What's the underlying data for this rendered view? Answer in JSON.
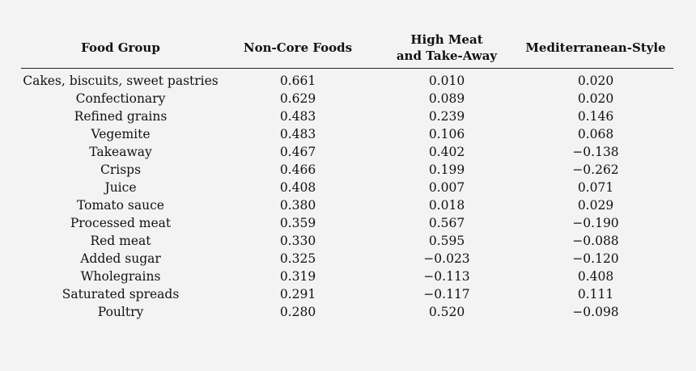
{
  "table": {
    "headers": [
      "Food Group",
      "Non-Core Foods",
      "High Meat\nand Take-Away",
      "Mediterranean-Style"
    ],
    "header_lines": {
      "col0": "Food Group",
      "col1": "Non-Core Foods",
      "col2_line1": "High Meat",
      "col2_line2": "and Take-Away",
      "col3": "Mediterranean-Style"
    },
    "rows": [
      [
        "Cakes, biscuits, sweet pastries",
        "0.661",
        "0.010",
        "0.020"
      ],
      [
        "Confectionary",
        "0.629",
        "0.089",
        "0.020"
      ],
      [
        "Refined grains",
        "0.483",
        "0.239",
        "0.146"
      ],
      [
        "Vegemite",
        "0.483",
        "0.106",
        "0.068"
      ],
      [
        "Takeaway",
        "0.467",
        "0.402",
        "−0.138"
      ],
      [
        "Crisps",
        "0.466",
        "0.199",
        "−0.262"
      ],
      [
        "Juice",
        "0.408",
        "0.007",
        "0.071"
      ],
      [
        "Tomato sauce",
        "0.380",
        "0.018",
        "0.029"
      ],
      [
        "Processed meat",
        "0.359",
        "0.567",
        "−0.190"
      ],
      [
        "Red meat",
        "0.330",
        "0.595",
        "−0.088"
      ],
      [
        "Added sugar",
        "0.325",
        "−0.023",
        "−0.120"
      ],
      [
        "Wholegrains",
        "0.319",
        "−0.113",
        "0.408"
      ],
      [
        "Saturated spreads",
        "0.291",
        "−0.117",
        "0.111"
      ],
      [
        "Poultry",
        "0.280",
        "0.520",
        "−0.098"
      ]
    ]
  }
}
